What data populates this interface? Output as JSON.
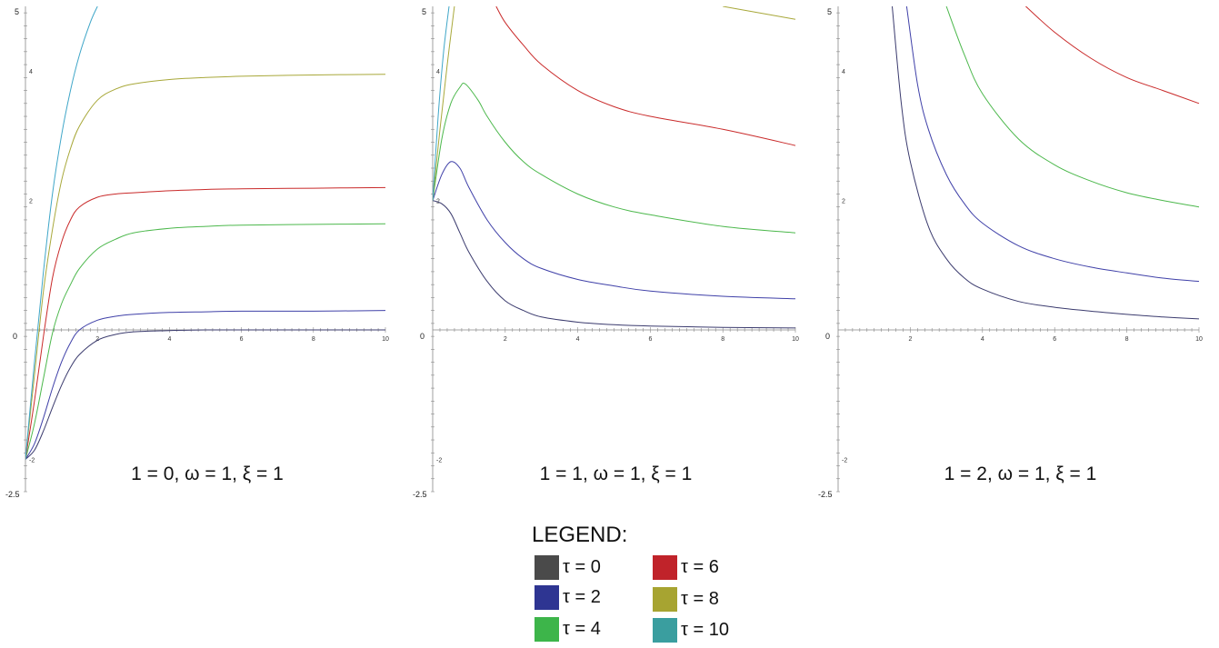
{
  "chart_data": [
    {
      "type": "line",
      "title": "1 = 0, ω = 1,  ξ = 1",
      "xlim": [
        0,
        10
      ],
      "ylim": [
        -2.5,
        5
      ],
      "x_ticks": [
        "2",
        "4",
        "6",
        "8",
        "10"
      ],
      "y_ticks": [
        "4",
        "2",
        "-2"
      ],
      "corner_labels": {
        "top": "5",
        "origin": "0",
        "bottom": "-2.5"
      },
      "series": [
        {
          "name": "τ = 0",
          "x": [
            0,
            0.25,
            0.5,
            0.75,
            1,
            1.25,
            1.5,
            2,
            2.5,
            3,
            4,
            5,
            6,
            8,
            10
          ],
          "y": [
            -2,
            -1.86,
            -1.56,
            -1.2,
            -0.86,
            -0.58,
            -0.38,
            -0.16,
            -0.07,
            -0.03,
            -0.01,
            0,
            0,
            0,
            0
          ]
        },
        {
          "name": "τ = 2",
          "x": [
            0,
            0.25,
            0.5,
            0.75,
            1,
            1.25,
            1.5,
            2,
            2.5,
            3,
            4,
            5,
            6,
            8,
            10
          ],
          "y": [
            -2,
            -1.76,
            -1.36,
            -0.9,
            -0.5,
            -0.2,
            0.0,
            0.15,
            0.21,
            0.24,
            0.27,
            0.28,
            0.29,
            0.29,
            0.3
          ]
        },
        {
          "name": "τ = 4",
          "x": [
            0,
            0.25,
            0.5,
            0.75,
            1,
            1.25,
            1.5,
            2,
            2.5,
            3,
            4,
            5,
            6,
            8,
            10
          ],
          "y": [
            -2,
            -1.45,
            -0.75,
            -0.05,
            0.4,
            0.7,
            0.95,
            1.25,
            1.4,
            1.5,
            1.57,
            1.6,
            1.62,
            1.63,
            1.64
          ]
        },
        {
          "name": "τ = 6",
          "x": [
            0,
            0.25,
            0.5,
            0.75,
            1,
            1.25,
            1.5,
            2,
            2.5,
            3,
            4,
            5,
            6,
            8,
            10
          ],
          "y": [
            -2,
            -1.1,
            -0.1,
            0.8,
            1.35,
            1.7,
            1.9,
            2.05,
            2.1,
            2.12,
            2.15,
            2.17,
            2.18,
            2.19,
            2.2
          ]
        },
        {
          "name": "τ = 8",
          "x": [
            0,
            0.25,
            0.5,
            0.75,
            1,
            1.25,
            1.5,
            2,
            2.5,
            3,
            4,
            5,
            6,
            8,
            10
          ],
          "y": [
            -2,
            -0.7,
            0.6,
            1.55,
            2.3,
            2.8,
            3.15,
            3.55,
            3.72,
            3.8,
            3.87,
            3.9,
            3.92,
            3.94,
            3.95
          ]
        },
        {
          "name": "τ = 10",
          "x": [
            0,
            0.25,
            0.5,
            0.75,
            1,
            1.25,
            1.5,
            1.8,
            2.0
          ],
          "y": [
            -2,
            -0.5,
            0.9,
            2.1,
            3.0,
            3.7,
            4.25,
            4.75,
            5.0
          ]
        }
      ]
    },
    {
      "type": "line",
      "title": "1 = 1, ω = 1,  ξ = 1",
      "xlim": [
        0,
        10
      ],
      "ylim": [
        -2.5,
        5
      ],
      "x_ticks": [
        "2",
        "4",
        "6",
        "8",
        "10"
      ],
      "y_ticks": [
        "4",
        "2",
        "-2"
      ],
      "corner_labels": {
        "top": "5",
        "origin": "0",
        "bottom": "-2.5"
      },
      "series": [
        {
          "name": "τ = 0",
          "x": [
            0,
            0.25,
            0.5,
            0.75,
            1,
            1.5,
            2,
            2.5,
            3,
            4,
            5,
            6,
            8,
            10
          ],
          "y": [
            2,
            1.95,
            1.8,
            1.5,
            1.2,
            0.75,
            0.45,
            0.3,
            0.2,
            0.12,
            0.08,
            0.06,
            0.04,
            0.03
          ]
        },
        {
          "name": "τ = 2",
          "x": [
            0,
            0.25,
            0.5,
            0.75,
            1,
            1.5,
            2,
            2.5,
            3,
            4,
            5,
            6,
            8,
            10
          ],
          "y": [
            2,
            2.4,
            2.6,
            2.5,
            2.2,
            1.7,
            1.35,
            1.1,
            0.95,
            0.78,
            0.68,
            0.6,
            0.52,
            0.48
          ]
        },
        {
          "name": "τ = 4",
          "x": [
            0,
            0.25,
            0.5,
            0.75,
            0.9,
            1.25,
            1.5,
            2,
            2.5,
            3,
            4,
            5,
            6,
            8,
            10
          ],
          "y": [
            2,
            2.95,
            3.5,
            3.75,
            3.8,
            3.55,
            3.3,
            2.9,
            2.6,
            2.4,
            2.1,
            1.9,
            1.78,
            1.6,
            1.5
          ]
        },
        {
          "name": "τ = 6",
          "x": [
            1.75,
            2,
            2.5,
            3,
            4,
            5,
            6,
            8,
            10
          ],
          "y": [
            5.0,
            4.75,
            4.4,
            4.1,
            3.7,
            3.45,
            3.3,
            3.1,
            2.85
          ]
        },
        {
          "name": "τ = 8",
          "x": [
            0,
            0.2,
            0.4,
            0.6,
            8,
            9,
            10
          ],
          "y": [
            2,
            3.1,
            4.1,
            5.0,
            5.0,
            4.9,
            4.8
          ]
        },
        {
          "name": "τ = 10",
          "x": [
            0,
            0.15,
            0.3,
            0.45
          ],
          "y": [
            2,
            3.3,
            4.3,
            5.0
          ]
        }
      ]
    },
    {
      "type": "line",
      "title": "1 = 2, ω = 1,  ξ = 1",
      "xlim": [
        0,
        10
      ],
      "ylim": [
        -2.5,
        5
      ],
      "x_ticks": [
        "2",
        "4",
        "6",
        "8",
        "10"
      ],
      "y_ticks": [
        "4",
        "2",
        "-2"
      ],
      "corner_labels": {
        "top": "5",
        "origin": "0",
        "bottom": "-2.5"
      },
      "series": [
        {
          "name": "τ = 0",
          "x": [
            1.5,
            1.75,
            2,
            2.5,
            3,
            3.5,
            4,
            5,
            6,
            7,
            8,
            9,
            10
          ],
          "y": [
            5.0,
            3.5,
            2.6,
            1.6,
            1.1,
            0.8,
            0.63,
            0.44,
            0.35,
            0.29,
            0.24,
            0.2,
            0.17
          ]
        },
        {
          "name": "τ = 2",
          "x": [
            1.9,
            2.2,
            2.5,
            3,
            3.5,
            4,
            5,
            6,
            7,
            8,
            9,
            10
          ],
          "y": [
            5.0,
            3.8,
            3.1,
            2.4,
            1.95,
            1.65,
            1.3,
            1.1,
            0.97,
            0.88,
            0.8,
            0.75
          ]
        },
        {
          "name": "τ = 4",
          "x": [
            3.0,
            3.5,
            4,
            5,
            6,
            7,
            8,
            9,
            10
          ],
          "y": [
            5.0,
            4.25,
            3.65,
            2.95,
            2.55,
            2.3,
            2.12,
            2.0,
            1.9
          ]
        },
        {
          "name": "τ = 6",
          "x": [
            5.2,
            6,
            7,
            8,
            9,
            10
          ],
          "y": [
            5.0,
            4.6,
            4.2,
            3.9,
            3.7,
            3.5
          ]
        }
      ]
    }
  ],
  "series_colors": [
    "#3b3b6e",
    "#3f40a8",
    "#4cb84c",
    "#c92a2a",
    "#a8a83a",
    "#3fa6c8"
  ],
  "legend": {
    "title": "LEGEND:",
    "items": [
      {
        "label": "τ = 0",
        "color": "#4a4a4a"
      },
      {
        "label": "τ = 2",
        "color": "#2e3592"
      },
      {
        "label": "τ = 4",
        "color": "#3db54a"
      },
      {
        "label": "τ = 6",
        "color": "#c0232a"
      },
      {
        "label": "τ = 8",
        "color": "#a7a431"
      },
      {
        "label": "τ = 10",
        "color": "#3a9e9f"
      }
    ]
  }
}
